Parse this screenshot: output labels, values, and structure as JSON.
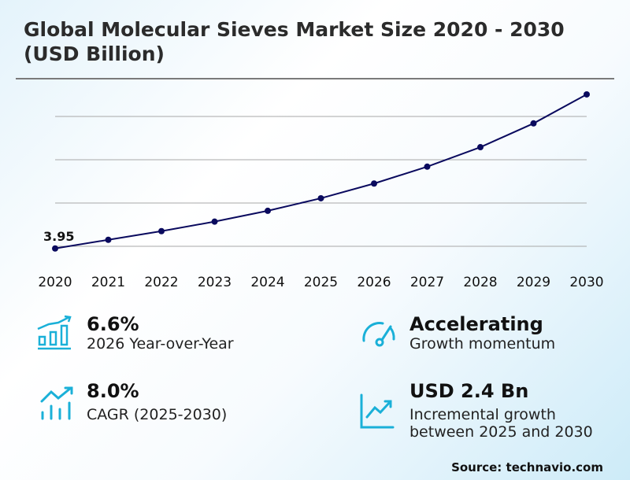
{
  "title": "Global Molecular Sieves Market Size 2020 - 2030 (USD Billion)",
  "chart_data": {
    "type": "line",
    "title": "Global Molecular Sieves Market Size 2020 - 2030 (USD Billion)",
    "categories": [
      "2020",
      "2021",
      "2022",
      "2023",
      "2024",
      "2025",
      "2026",
      "2027",
      "2028",
      "2029",
      "2030"
    ],
    "values": [
      3.95,
      4.15,
      4.35,
      4.57,
      4.82,
      5.11,
      5.45,
      5.84,
      6.29,
      6.84,
      7.51
    ],
    "data_labels": [
      "3.95"
    ],
    "ylim": [
      3.6,
      7.6
    ],
    "gridlines": [
      4,
      5,
      6,
      7
    ],
    "grid": true,
    "line_color": "#0a0a5e"
  },
  "stats": [
    {
      "value": "6.6%",
      "label": "2026 Year-over-Year",
      "icon": "bar-chart-growth-icon"
    },
    {
      "value": "Accelerating",
      "label": "Growth momentum",
      "icon": "speedometer-icon"
    },
    {
      "value": "8.0%",
      "label": "CAGR (2025-2030)",
      "icon": "trend-up-bars-icon"
    },
    {
      "value": "USD 2.4 Bn",
      "label_lines": [
        "Incremental growth",
        "between 2025 and 2030"
      ],
      "icon": "line-chart-up-icon"
    }
  ],
  "accent_color": "#1ab0d8",
  "source": "Source: technavio.com"
}
